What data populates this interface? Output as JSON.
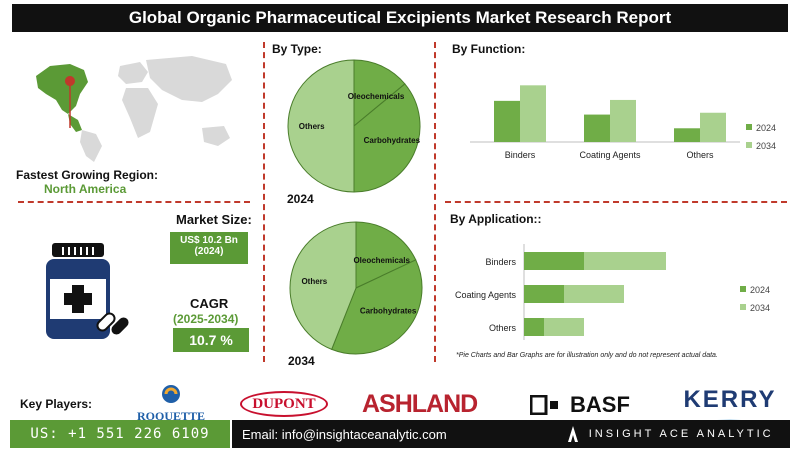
{
  "title": "Global Organic Pharmaceutical Excipients Market Research Report",
  "region": {
    "label": "Fastest Growing Region:",
    "value": "North America"
  },
  "market_size": {
    "label": "Market Size:",
    "value_line1": "US$ 10.2 Bn",
    "value_line2": "(2024)"
  },
  "cagr": {
    "label": "CAGR",
    "period": "(2025-2034)",
    "value": "10.7 %"
  },
  "by_type": {
    "heading": "By Type:",
    "year_2024": "2024",
    "year_2034": "2034",
    "labels": [
      "Oleochemicals",
      "Carbohydrates",
      "Others"
    ]
  },
  "by_function": {
    "heading": "By Function:",
    "legend": [
      "2024",
      "2034"
    ]
  },
  "by_application": {
    "heading": "By Application::",
    "legend": [
      "2024",
      "2034"
    ]
  },
  "note": "*Pie Charts and Bar Graphs are for illustration only and do not represent actual data.",
  "key_players": {
    "label": "Key Players:",
    "logos": [
      "ROQUETTE",
      "DUPONT",
      "ASHLAND",
      "BASF",
      "KERRY"
    ]
  },
  "footer": {
    "phone": "US: +1 551 226 6109",
    "email": "Email: info@insightaceanalytic.com",
    "brand": "INSIGHT ACE ANALYTIC"
  },
  "colors": {
    "dark_green": "#5b9a36",
    "light_green": "#a9d18e",
    "mid_green": "#70ad47",
    "divider_red": "#c0392b"
  },
  "chart_data": [
    {
      "type": "pie",
      "title": "2024",
      "labels": [
        "Oleochemicals",
        "Carbohydrates",
        "Others"
      ],
      "values": [
        14,
        36,
        50
      ]
    },
    {
      "type": "pie",
      "title": "2034",
      "labels": [
        "Oleochemicals",
        "Carbohydrates",
        "Others"
      ],
      "values": [
        18,
        38,
        44
      ]
    },
    {
      "type": "bar",
      "title": "By Function:",
      "categories": [
        "Binders",
        "Coating Agents",
        "Others"
      ],
      "series": [
        {
          "name": "2024",
          "values": [
            45,
            30,
            15
          ]
        },
        {
          "name": "2034",
          "values": [
            62,
            46,
            32
          ]
        }
      ],
      "ylim": [
        0,
        70
      ],
      "legend": "right"
    },
    {
      "type": "bar",
      "orientation": "horizontal",
      "stacked": true,
      "title": "By Application::",
      "categories": [
        "Binders",
        "Coating Agents",
        "Others"
      ],
      "series": [
        {
          "name": "2024",
          "values": [
            30,
            20,
            10
          ]
        },
        {
          "name": "2034",
          "values": [
            41,
            30,
            20
          ]
        }
      ],
      "legend": "right"
    }
  ]
}
